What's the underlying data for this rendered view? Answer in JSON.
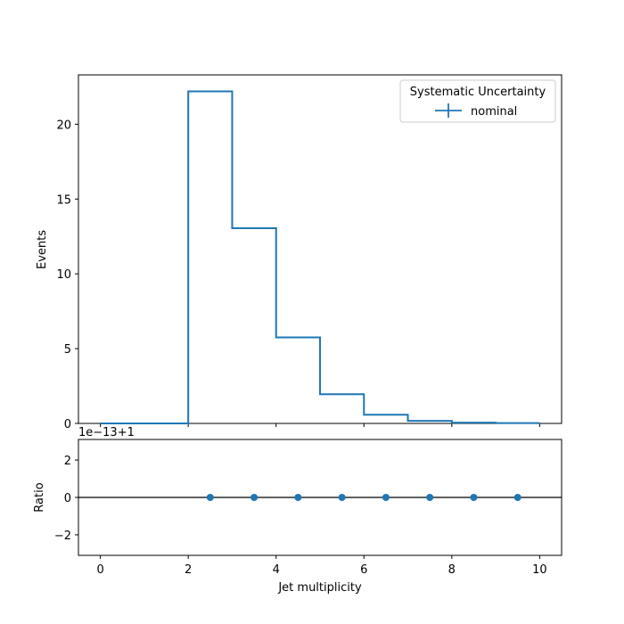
{
  "chart_data": [
    {
      "type": "line",
      "drawstyle": "steps",
      "x_edges": [
        0,
        1,
        2,
        3,
        4,
        5,
        6,
        7,
        8,
        9,
        10
      ],
      "series": [
        {
          "name": "nominal",
          "color": "#1f77b4",
          "values": [
            0,
            0,
            22.2,
            13.05,
            5.75,
            1.95,
            0.58,
            0.17,
            0.05,
            0.02
          ]
        }
      ],
      "ylabel": "Events",
      "ylim": [
        0,
        23.3
      ],
      "yticks": [
        0,
        5,
        10,
        15,
        20
      ],
      "xlim": [
        -0.5,
        10.5
      ],
      "legend": {
        "title": "Systematic Uncertainty",
        "placement": "top-right"
      }
    },
    {
      "type": "scatter",
      "x": [
        2.5,
        3.5,
        4.5,
        5.5,
        6.5,
        7.5,
        8.5,
        9.5
      ],
      "series": [
        {
          "color": "#1f77b4",
          "values": [
            0,
            0,
            0,
            0,
            0,
            0,
            0,
            0
          ]
        }
      ],
      "offset_text": "1e−13+1",
      "reference_line": 0,
      "ylabel": "Ratio",
      "xlabel": "Jet multiplicity",
      "ylim": [
        -3.1,
        3.1
      ],
      "yticks": [
        -2,
        0,
        2
      ],
      "xticks": [
        0,
        2,
        4,
        6,
        8,
        10
      ],
      "xlim": [
        -0.5,
        10.5
      ]
    }
  ]
}
